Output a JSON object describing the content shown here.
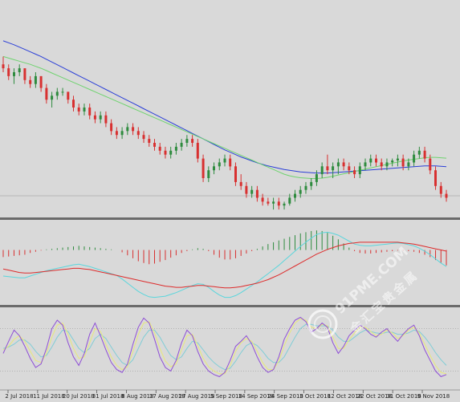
{
  "colors": {
    "background": "#d9d9d9",
    "separator": "#6b6b6b",
    "bull_candle": "#2e8b3e",
    "bear_candle": "#d83030",
    "ma_slow": "#2b3fd8",
    "ma_fast": "#6fd36f",
    "macd_signal": "#dd2b2b",
    "macd_line": "#5ad6dc",
    "osc_main": "#8f4fd6",
    "osc_signal": "#e8e87a",
    "osc_slow": "#80cdd6",
    "price_line": "#b8b8b8",
    "watermark": "#ffffff"
  },
  "watermark": {
    "text": "91PME.COM",
    "glyphs": "金汇宝贵金属",
    "icon": "coin-logo-icon"
  },
  "chart_data": [
    {
      "type": "candlestick",
      "panel": "price",
      "x": [
        "2 Jul 2018",
        "11 Jul 2018",
        "20 Jul 2018",
        "31 Jul 2018",
        "8 Aug 2018",
        "17 Aug 2018",
        "27 Aug 2018",
        "5 Sep 2018",
        "14 Sep 2018",
        "24 Sep 2018",
        "3 Oct 2018",
        "12 Oct 2018",
        "22 Oct 2018",
        "31 Oct 2018",
        "9 Nov 2018"
      ],
      "ohlc": [
        [
          78,
          80,
          76,
          77
        ],
        [
          77,
          78,
          74,
          75
        ],
        [
          75,
          77,
          73,
          76
        ],
        [
          76,
          78,
          75,
          77
        ],
        [
          77,
          77,
          73,
          74
        ],
        [
          74,
          75,
          72,
          73
        ],
        [
          73,
          76,
          72,
          75
        ],
        [
          75,
          75,
          71,
          72
        ],
        [
          72,
          73,
          68,
          69
        ],
        [
          69,
          71,
          67,
          70
        ],
        [
          70,
          72,
          69,
          71
        ],
        [
          71,
          72,
          70,
          71
        ],
        [
          71,
          71,
          68,
          69
        ],
        [
          69,
          70,
          66,
          67
        ],
        [
          67,
          68,
          65,
          66
        ],
        [
          66,
          68,
          65,
          67
        ],
        [
          67,
          68,
          64,
          65
        ],
        [
          65,
          66,
          63,
          64
        ],
        [
          64,
          66,
          63,
          65
        ],
        [
          65,
          66,
          62,
          63
        ],
        [
          63,
          64,
          60,
          61
        ],
        [
          61,
          62,
          59,
          60
        ],
        [
          60,
          62,
          59,
          61
        ],
        [
          61,
          63,
          60,
          62
        ],
        [
          62,
          63,
          60,
          61
        ],
        [
          61,
          62,
          59,
          60
        ],
        [
          60,
          61,
          58,
          59
        ],
        [
          59,
          60,
          57,
          58
        ],
        [
          58,
          59,
          56,
          57
        ],
        [
          57,
          58,
          55,
          56
        ],
        [
          56,
          57,
          54,
          55
        ],
        [
          55,
          57,
          54,
          56
        ],
        [
          56,
          58,
          55,
          57
        ],
        [
          57,
          59,
          56,
          58
        ],
        [
          58,
          60,
          57,
          59
        ],
        [
          59,
          60,
          57,
          58
        ],
        [
          58,
          59,
          53,
          54
        ],
        [
          54,
          55,
          48,
          49
        ],
        [
          49,
          52,
          48,
          51
        ],
        [
          51,
          53,
          50,
          52
        ],
        [
          52,
          54,
          51,
          53
        ],
        [
          53,
          55,
          52,
          54
        ],
        [
          54,
          55,
          51,
          52
        ],
        [
          52,
          53,
          47,
          48
        ],
        [
          48,
          50,
          46,
          47
        ],
        [
          47,
          48,
          44,
          45
        ],
        [
          45,
          47,
          44,
          46
        ],
        [
          46,
          47,
          43,
          44
        ],
        [
          44,
          45,
          42,
          43
        ],
        [
          43,
          44,
          42,
          42.5
        ],
        [
          42.5,
          44,
          41,
          43
        ],
        [
          43,
          44,
          41,
          42
        ],
        [
          42,
          43,
          41,
          42.5
        ],
        [
          42.5,
          45,
          42,
          44
        ],
        [
          44,
          46,
          43,
          45
        ],
        [
          45,
          47,
          44,
          46
        ],
        [
          46,
          48,
          45,
          47
        ],
        [
          47,
          49,
          46,
          48
        ],
        [
          48,
          51,
          47,
          50
        ],
        [
          50,
          53,
          49,
          52
        ],
        [
          52,
          55,
          50,
          51
        ],
        [
          51,
          53,
          49,
          52
        ],
        [
          52,
          54,
          50,
          53
        ],
        [
          53,
          54,
          51,
          52
        ],
        [
          52,
          53,
          50,
          51
        ],
        [
          51,
          52,
          49,
          50
        ],
        [
          50,
          53,
          49,
          52
        ],
        [
          52,
          54,
          51,
          53
        ],
        [
          53,
          55,
          52,
          54
        ],
        [
          54,
          55,
          52,
          53
        ],
        [
          53,
          54,
          51,
          52
        ],
        [
          52,
          54,
          51,
          53
        ],
        [
          53,
          54,
          52,
          53.5
        ],
        [
          53.5,
          55,
          52,
          54
        ],
        [
          54,
          55,
          51,
          52
        ],
        [
          52,
          54,
          51,
          53
        ],
        [
          53,
          56,
          52,
          55
        ],
        [
          55,
          57,
          54,
          56
        ],
        [
          56,
          57,
          53,
          54
        ],
        [
          54,
          55,
          50,
          51
        ],
        [
          51,
          52,
          46,
          47
        ],
        [
          47,
          48,
          44,
          45
        ],
        [
          45,
          46,
          43,
          44
        ]
      ],
      "overlays": [
        {
          "name": "MA slow",
          "color": "#2b3fd8",
          "values": [
            84,
            83.5,
            83,
            82.4,
            81.8,
            81.2,
            80.6,
            80,
            79.3,
            78.6,
            77.9,
            77.2,
            76.5,
            75.8,
            75.1,
            74.4,
            73.7,
            73,
            72.3,
            71.6,
            70.9,
            70.2,
            69.5,
            68.8,
            68.1,
            67.4,
            66.7,
            66,
            65.3,
            64.6,
            63.9,
            63.2,
            62.5,
            61.8,
            61.1,
            60.4,
            59.7,
            59,
            58.3,
            57.6,
            56.9,
            56.2,
            55.6,
            55,
            54.4,
            53.9,
            53.4,
            52.9,
            52.5,
            52.1,
            51.8,
            51.5,
            51.2,
            51,
            50.8,
            50.6,
            50.5,
            50.4,
            50.3,
            50.3,
            50.3,
            50.4,
            50.5,
            50.6,
            50.7,
            50.8,
            50.9,
            51,
            51.1,
            51.2,
            51.3,
            51.4,
            51.5,
            51.6,
            51.7,
            51.8,
            51.9,
            52,
            52.1,
            52.1,
            52.1,
            52,
            51.9
          ]
        },
        {
          "name": "MA fast",
          "color": "#6fd36f",
          "values": [
            80,
            79.6,
            79.2,
            78.8,
            78.4,
            78,
            77.5,
            77,
            76.4,
            75.8,
            75.2,
            74.6,
            74,
            73.4,
            72.8,
            72.2,
            71.6,
            71,
            70.4,
            69.8,
            69.2,
            68.6,
            68,
            67.4,
            66.8,
            66.2,
            65.6,
            65,
            64.4,
            63.8,
            63.2,
            62.6,
            62,
            61.4,
            60.8,
            60.2,
            59.6,
            59,
            58.4,
            57.8,
            57.2,
            56.6,
            56,
            55.4,
            54.8,
            54.2,
            53.6,
            53,
            52.4,
            51.8,
            51.2,
            50.6,
            50,
            49.6,
            49.3,
            49.1,
            49,
            48.9,
            48.9,
            49,
            49.2,
            49.5,
            49.8,
            50.1,
            50.4,
            50.7,
            51,
            51.3,
            51.6,
            51.9,
            52.2,
            52.5,
            52.8,
            53.1,
            53.4,
            53.6,
            53.8,
            54,
            54.2,
            54.3,
            54.3,
            54.2,
            54.1
          ]
        }
      ],
      "last_price": 44.5
    },
    {
      "type": "histogram-with-lines",
      "panel": "macd",
      "histogram": [
        -1.2,
        -1.1,
        -1,
        -0.9,
        -0.8,
        -0.5,
        -0.3,
        -0.1,
        0.1,
        0.2,
        0.3,
        0.4,
        0.5,
        0.6,
        0.7,
        0.6,
        0.5,
        0.4,
        0.3,
        0.2,
        0.1,
        0,
        -0.4,
        -0.9,
        -1.4,
        -1.9,
        -2.2,
        -2.4,
        -2.3,
        -2,
        -1.7,
        -1.3,
        -0.9,
        -0.5,
        -0.2,
        0.1,
        0.3,
        0.2,
        -0.2,
        -0.8,
        -1.3,
        -1.6,
        -1.6,
        -1.4,
        -1,
        -0.6,
        -0.2,
        0.2,
        0.6,
        1,
        1.3,
        1.6,
        1.9,
        2.2,
        2.5,
        2.8,
        3,
        3.2,
        3.3,
        3.2,
        2.9,
        2.4,
        1.8,
        1.1,
        0.4,
        -0.2,
        -0.5,
        -0.6,
        -0.6,
        -0.5,
        -0.4,
        -0.3,
        -0.2,
        -0.1,
        -0.1,
        -0.2,
        -0.3,
        -0.5,
        -0.8,
        -1.2,
        -1.7,
        -2.2,
        -2.6
      ],
      "signal": [
        -3.2,
        -3.4,
        -3.6,
        -3.8,
        -3.9,
        -3.9,
        -3.8,
        -3.7,
        -3.6,
        -3.5,
        -3.4,
        -3.3,
        -3.2,
        -3.1,
        -3.1,
        -3.2,
        -3.3,
        -3.5,
        -3.7,
        -3.9,
        -4.1,
        -4.3,
        -4.5,
        -4.7,
        -4.9,
        -5.1,
        -5.3,
        -5.5,
        -5.7,
        -5.9,
        -6.1,
        -6.2,
        -6.3,
        -6.3,
        -6.2,
        -6.1,
        -6,
        -6,
        -6.1,
        -6.2,
        -6.3,
        -6.4,
        -6.4,
        -6.3,
        -6.2,
        -6,
        -5.8,
        -5.6,
        -5.3,
        -5,
        -4.6,
        -4.2,
        -3.7,
        -3.2,
        -2.7,
        -2.2,
        -1.7,
        -1.2,
        -0.7,
        -0.3,
        0.1,
        0.4,
        0.7,
        0.9,
        1.1,
        1.2,
        1.3,
        1.3,
        1.3,
        1.3,
        1.3,
        1.3,
        1.3,
        1.3,
        1.2,
        1.1,
        1,
        0.8,
        0.6,
        0.4,
        0.2,
        0,
        -0.2
      ],
      "macd": [
        -4.4,
        -4.5,
        -4.6,
        -4.7,
        -4.7,
        -4.4,
        -4.1,
        -3.8,
        -3.5,
        -3.3,
        -3.1,
        -2.9,
        -2.7,
        -2.5,
        -2.4,
        -2.6,
        -2.8,
        -3.1,
        -3.4,
        -3.7,
        -4,
        -4.3,
        -4.9,
        -5.6,
        -6.3,
        -7,
        -7.5,
        -7.9,
        -8,
        -7.9,
        -7.8,
        -7.5,
        -7.2,
        -6.8,
        -6.4,
        -6,
        -5.7,
        -5.8,
        -6.3,
        -7,
        -7.6,
        -8,
        -8,
        -7.7,
        -7.2,
        -6.6,
        -6,
        -5.4,
        -4.7,
        -4,
        -3.3,
        -2.6,
        -1.8,
        -1,
        -0.2,
        0.6,
        1.3,
        2,
        2.6,
        2.9,
        3,
        2.8,
        2.5,
        2,
        1.5,
        1,
        0.8,
        0.7,
        0.7,
        0.8,
        0.9,
        1,
        1.1,
        1.2,
        1.1,
        0.9,
        0.7,
        0.3,
        -0.2,
        -0.8,
        -1.5,
        -2.2,
        -2.8
      ],
      "ylim": [
        -9,
        4
      ]
    },
    {
      "type": "line",
      "panel": "oscillator",
      "series": [
        {
          "color": "#8f4fd6",
          "values": [
            45,
            62,
            78,
            70,
            55,
            38,
            25,
            30,
            52,
            80,
            92,
            85,
            60,
            40,
            28,
            45,
            72,
            88,
            70,
            50,
            32,
            22,
            18,
            30,
            58,
            82,
            95,
            88,
            65,
            40,
            25,
            20,
            35,
            60,
            78,
            70,
            48,
            30,
            20,
            15,
            12,
            18,
            35,
            55,
            62,
            70,
            58,
            40,
            25,
            18,
            22,
            40,
            65,
            80,
            92,
            96,
            90,
            75,
            80,
            88,
            82,
            60,
            45,
            55,
            70,
            78,
            85,
            80,
            72,
            68,
            75,
            80,
            70,
            62,
            72,
            80,
            85,
            70,
            50,
            35,
            20,
            12,
            15
          ]
        },
        {
          "color": "#e8e87a",
          "values": [
            50,
            55,
            65,
            70,
            62,
            48,
            35,
            32,
            45,
            68,
            85,
            88,
            72,
            52,
            38,
            40,
            60,
            80,
            76,
            58,
            40,
            28,
            22,
            26,
            48,
            72,
            88,
            90,
            74,
            52,
            34,
            26,
            30,
            50,
            70,
            72,
            56,
            38,
            26,
            20,
            16,
            16,
            28,
            48,
            60,
            66,
            62,
            48,
            32,
            22,
            22,
            34,
            56,
            74,
            88,
            94,
            92,
            82,
            80,
            86,
            84,
            68,
            52,
            52,
            64,
            74,
            82,
            82,
            76,
            70,
            72,
            78,
            74,
            66,
            70,
            78,
            82,
            74,
            58,
            42,
            28,
            18,
            16
          ]
        },
        {
          "color": "#80cdd6",
          "values": [
            52,
            54,
            58,
            64,
            64,
            58,
            48,
            40,
            42,
            54,
            68,
            78,
            76,
            64,
            52,
            46,
            52,
            66,
            72,
            66,
            54,
            42,
            32,
            28,
            36,
            52,
            68,
            78,
            78,
            68,
            54,
            42,
            36,
            40,
            52,
            62,
            60,
            50,
            40,
            32,
            26,
            22,
            24,
            34,
            46,
            56,
            60,
            56,
            48,
            38,
            32,
            32,
            40,
            54,
            68,
            80,
            86,
            86,
            84,
            84,
            84,
            78,
            68,
            62,
            62,
            68,
            74,
            78,
            76,
            74,
            73,
            75,
            75,
            72,
            72,
            74,
            78,
            76,
            68,
            58,
            46,
            36,
            28
          ]
        }
      ],
      "ylim": [
        0,
        100
      ]
    }
  ]
}
